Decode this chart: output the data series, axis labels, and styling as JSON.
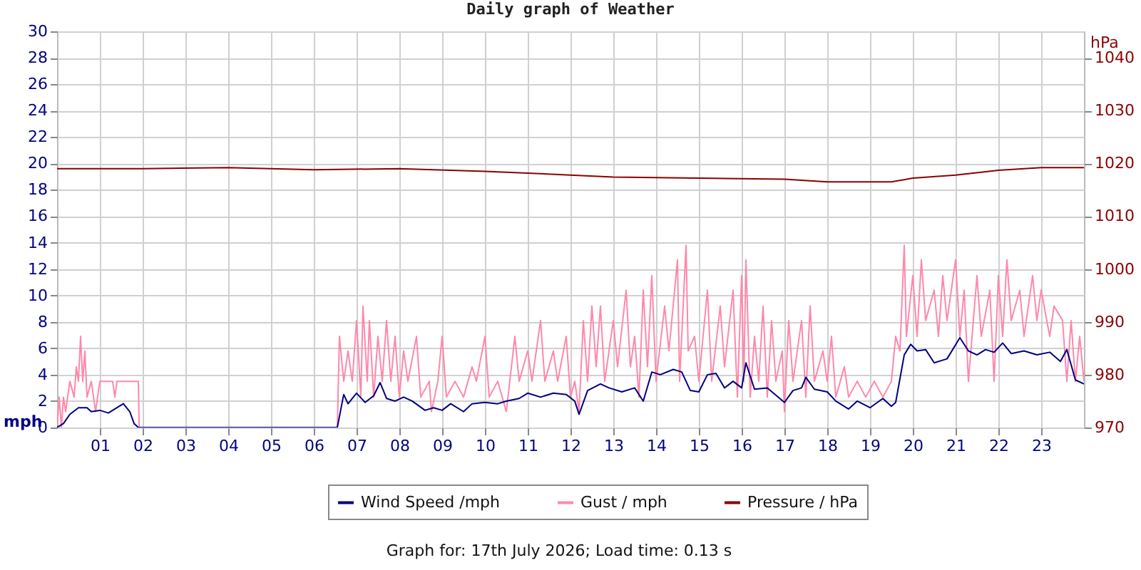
{
  "chart_data": {
    "type": "line",
    "title": "Daily graph of Weather",
    "ylabel": "mph",
    "y2label": "hPa",
    "annotations": [
      "Graph for: 17th July 2026; Load time: 0.13 s"
    ],
    "xlim": [
      0,
      24
    ],
    "xticks": [
      {
        "value": 1,
        "label": "01"
      },
      {
        "value": 2,
        "label": "02"
      },
      {
        "value": 3,
        "label": "03"
      },
      {
        "value": 4,
        "label": "04"
      },
      {
        "value": 5,
        "label": "05"
      },
      {
        "value": 6,
        "label": "06"
      },
      {
        "value": 7,
        "label": "07"
      },
      {
        "value": 8,
        "label": "08"
      },
      {
        "value": 9,
        "label": "09"
      },
      {
        "value": 10,
        "label": "10"
      },
      {
        "value": 11,
        "label": "11"
      },
      {
        "value": 12,
        "label": "12"
      },
      {
        "value": 13,
        "label": "13"
      },
      {
        "value": 14,
        "label": "14"
      },
      {
        "value": 15,
        "label": "15"
      },
      {
        "value": 16,
        "label": "16"
      },
      {
        "value": 17,
        "label": "17"
      },
      {
        "value": 18,
        "label": "18"
      },
      {
        "value": 19,
        "label": "19"
      },
      {
        "value": 20,
        "label": "20"
      },
      {
        "value": 21,
        "label": "21"
      },
      {
        "value": 22,
        "label": "22"
      },
      {
        "value": 23,
        "label": "23"
      }
    ],
    "ylim": [
      0,
      30
    ],
    "yticks": [
      0,
      2,
      4,
      6,
      8,
      10,
      12,
      14,
      16,
      18,
      20,
      22,
      24,
      26,
      28,
      30
    ],
    "y2lim": [
      970,
      1045
    ],
    "y2ticks": [
      970,
      980,
      990,
      1000,
      1010,
      1020,
      1030,
      1040
    ],
    "grid": true,
    "legend": "bottom",
    "series": [
      {
        "name": "Wind Speed /mph",
        "color": "#000080",
        "x": [
          0,
          0.15,
          0.3,
          0.5,
          0.7,
          0.8,
          1.0,
          1.2,
          1.4,
          1.55,
          1.7,
          1.8,
          1.9,
          6.55,
          6.7,
          6.8,
          7.0,
          7.2,
          7.4,
          7.55,
          7.7,
          7.9,
          8.1,
          8.3,
          8.6,
          8.8,
          9.0,
          9.2,
          9.5,
          9.7,
          10.0,
          10.3,
          10.5,
          10.8,
          11.0,
          11.3,
          11.6,
          11.9,
          12.1,
          12.2,
          12.4,
          12.7,
          12.9,
          13.2,
          13.5,
          13.7,
          13.9,
          14.1,
          14.4,
          14.6,
          14.8,
          15.0,
          15.2,
          15.4,
          15.6,
          15.8,
          16.0,
          16.1,
          16.3,
          16.6,
          17.0,
          17.2,
          17.4,
          17.5,
          17.7,
          18.0,
          18.2,
          18.5,
          18.7,
          19.0,
          19.3,
          19.5,
          19.6,
          19.8,
          19.95,
          20.1,
          20.3,
          20.5,
          20.8,
          21.1,
          21.3,
          21.5,
          21.7,
          21.9,
          22.1,
          22.3,
          22.6,
          22.9,
          23.2,
          23.45,
          23.6,
          23.8,
          24.0
        ],
        "values": [
          0,
          0.3,
          1.0,
          1.5,
          1.5,
          1.2,
          1.3,
          1.1,
          1.5,
          1.8,
          1.2,
          0.3,
          0,
          0,
          2.5,
          1.8,
          2.6,
          1.9,
          2.4,
          3.4,
          2.2,
          2.0,
          2.3,
          2.0,
          1.3,
          1.5,
          1.3,
          1.8,
          1.2,
          1.8,
          1.9,
          1.8,
          2.0,
          2.2,
          2.6,
          2.3,
          2.6,
          2.5,
          2.0,
          1.0,
          2.8,
          3.3,
          3.0,
          2.7,
          3.0,
          2.0,
          4.2,
          4.0,
          4.4,
          4.2,
          2.8,
          2.7,
          4.0,
          4.1,
          3.0,
          3.5,
          3.0,
          4.9,
          2.9,
          3.0,
          1.9,
          2.8,
          3.0,
          3.8,
          2.9,
          2.7,
          2.0,
          1.4,
          2.0,
          1.5,
          2.2,
          1.6,
          1.9,
          5.5,
          6.3,
          5.8,
          5.9,
          4.9,
          5.2,
          6.8,
          5.8,
          5.5,
          5.9,
          5.7,
          6.4,
          5.6,
          5.8,
          5.5,
          5.7,
          5.0,
          5.9,
          3.6,
          3.3
        ]
      },
      {
        "name": "Gust / mph",
        "color": "#ff88aa",
        "x": [
          0,
          0.05,
          0.1,
          0.15,
          0.2,
          0.3,
          0.4,
          0.45,
          0.5,
          0.55,
          0.6,
          0.65,
          0.7,
          0.8,
          0.9,
          1.0,
          1.3,
          1.35,
          1.4,
          1.9,
          1.92,
          6.55,
          6.6,
          6.7,
          6.8,
          6.9,
          7.0,
          7.1,
          7.15,
          7.25,
          7.3,
          7.4,
          7.5,
          7.6,
          7.7,
          7.8,
          7.9,
          8.0,
          8.1,
          8.2,
          8.4,
          8.5,
          8.7,
          8.75,
          8.9,
          9.0,
          9.1,
          9.3,
          9.5,
          9.7,
          9.8,
          10.0,
          10.1,
          10.3,
          10.5,
          10.7,
          10.8,
          11.0,
          11.1,
          11.3,
          11.4,
          11.6,
          11.7,
          11.9,
          12.0,
          12.1,
          12.2,
          12.3,
          12.4,
          12.5,
          12.6,
          12.7,
          12.8,
          13.0,
          13.1,
          13.3,
          13.4,
          13.5,
          13.6,
          13.7,
          13.8,
          13.9,
          14.0,
          14.2,
          14.3,
          14.5,
          14.55,
          14.7,
          14.75,
          14.9,
          15.0,
          15.2,
          15.3,
          15.5,
          15.6,
          15.8,
          15.9,
          16.0,
          16.05,
          16.1,
          16.2,
          16.3,
          16.4,
          16.5,
          16.6,
          16.7,
          16.8,
          16.95,
          17.0,
          17.1,
          17.2,
          17.4,
          17.5,
          17.6,
          17.7,
          17.9,
          18.0,
          18.1,
          18.2,
          18.4,
          18.5,
          18.7,
          18.9,
          19.1,
          19.3,
          19.5,
          19.6,
          19.7,
          19.8,
          19.85,
          20.0,
          20.1,
          20.2,
          20.3,
          20.5,
          20.6,
          20.7,
          20.8,
          21.0,
          21.1,
          21.2,
          21.3,
          21.5,
          21.6,
          21.8,
          21.9,
          22.0,
          22.1,
          22.2,
          22.3,
          22.5,
          22.6,
          22.8,
          22.9,
          23.0,
          23.2,
          23.3,
          23.5,
          23.6,
          23.7,
          23.8,
          23.9,
          24.0
        ],
        "values": [
          0,
          2.3,
          0,
          2.3,
          1.2,
          3.5,
          2.3,
          4.6,
          3.5,
          6.9,
          3.5,
          5.8,
          2.3,
          3.5,
          1.2,
          3.5,
          3.5,
          2.3,
          3.5,
          3.5,
          0,
          0,
          6.9,
          3.5,
          5.8,
          3.5,
          8.1,
          2.3,
          9.2,
          3.5,
          8.1,
          2.3,
          6.9,
          3.5,
          8.1,
          3.5,
          6.9,
          2.3,
          5.8,
          3.5,
          6.9,
          2.3,
          3.5,
          1.2,
          3.5,
          6.9,
          2.3,
          3.5,
          2.3,
          4.6,
          3.5,
          6.9,
          2.3,
          3.5,
          1.2,
          6.9,
          3.5,
          5.8,
          3.5,
          8.1,
          3.5,
          5.8,
          3.5,
          6.9,
          2.3,
          3.5,
          1.2,
          8.1,
          3.5,
          9.2,
          4.6,
          9.2,
          3.5,
          8.1,
          4.6,
          10.4,
          4.6,
          6.9,
          2.3,
          10.4,
          4.6,
          11.5,
          3.5,
          9.2,
          5.8,
          12.7,
          3.5,
          13.8,
          5.8,
          6.9,
          3.5,
          10.4,
          3.5,
          9.2,
          4.6,
          10.4,
          2.3,
          11.5,
          3.5,
          12.7,
          2.3,
          6.9,
          3.5,
          9.2,
          2.3,
          8.1,
          3.5,
          5.8,
          1.2,
          8.1,
          3.5,
          8.1,
          2.3,
          9.2,
          3.5,
          5.8,
          3.5,
          6.9,
          2.3,
          4.6,
          2.3,
          3.5,
          2.3,
          3.5,
          2.3,
          3.5,
          6.9,
          5.8,
          13.8,
          6.9,
          11.5,
          6.9,
          12.7,
          8.1,
          10.4,
          6.9,
          11.5,
          8.1,
          12.7,
          6.9,
          10.4,
          3.5,
          11.5,
          6.9,
          10.4,
          3.5,
          11.5,
          6.9,
          12.7,
          8.1,
          10.4,
          6.9,
          11.5,
          8.1,
          10.4,
          6.9,
          9.2,
          8.1,
          3.5,
          8.1,
          3.5,
          6.9,
          3.5
        ]
      },
      {
        "name": "Pressure / hPa",
        "color": "#8b0000",
        "axis": "y2",
        "x": [
          0,
          2,
          4,
          6,
          8,
          10,
          12,
          13,
          15,
          17,
          18,
          19.5,
          20,
          21,
          22,
          23,
          24
        ],
        "values": [
          1019,
          1019,
          1019.2,
          1018.8,
          1019,
          1018.5,
          1017.8,
          1017.4,
          1017.2,
          1017,
          1016.5,
          1016.5,
          1017.2,
          1017.8,
          1018.7,
          1019.2,
          1019.2
        ]
      }
    ]
  }
}
